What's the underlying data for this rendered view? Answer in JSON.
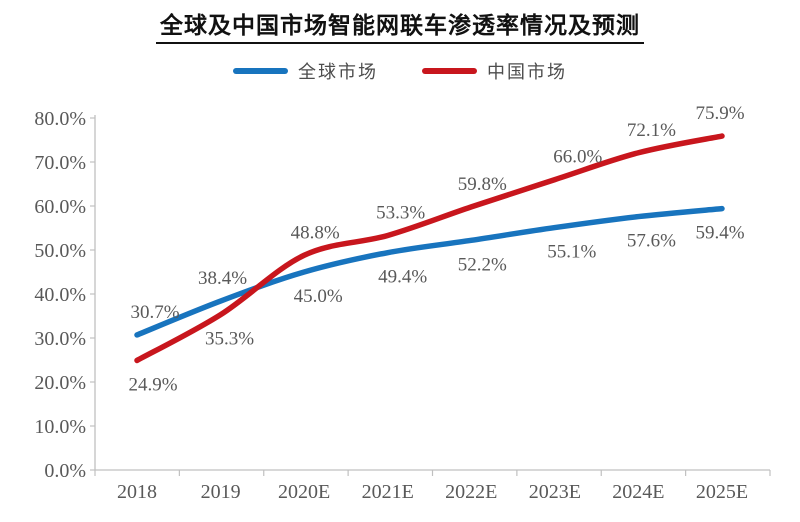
{
  "title": "全球及中国市场智能网联车渗透率情况及预测",
  "legend": [
    {
      "label": "全球市场",
      "color": "#1874BE"
    },
    {
      "label": "中国市场",
      "color": "#C8161D"
    }
  ],
  "colors": {
    "global_series": "#1874BE",
    "china_series": "#C8161D",
    "axis_line": "#C0C0C0",
    "text_gray": "#595959",
    "title_black": "#111111"
  },
  "chart_data": {
    "type": "line",
    "title": "全球及中国市场智能网联车渗透率情况及预测",
    "categories": [
      "2018",
      "2019",
      "2020E",
      "2021E",
      "2022E",
      "2023E",
      "2024E",
      "2025E"
    ],
    "series": [
      {
        "name": "全球市场",
        "color": "#1874BE",
        "values": [
          30.7,
          38.4,
          45.0,
          49.4,
          52.2,
          55.1,
          57.6,
          59.4
        ],
        "data_labels": [
          "30.7%",
          "38.4%",
          "45.0%",
          "49.4%",
          "52.2%",
          "55.1%",
          "57.6%",
          "59.4%"
        ],
        "label_placement": [
          "above",
          "above",
          "below",
          "below",
          "below",
          "below",
          "below",
          "below"
        ],
        "label_dx": [
          18,
          2,
          14,
          15,
          11,
          17,
          13,
          -2
        ]
      },
      {
        "name": "中国市场",
        "color": "#C8161D",
        "values": [
          24.9,
          35.3,
          48.8,
          53.3,
          59.8,
          66.0,
          72.1,
          75.9
        ],
        "data_labels": [
          "24.9%",
          "35.3%",
          "48.8%",
          "53.3%",
          "59.8%",
          "66.0%",
          "72.1%",
          "75.9%"
        ],
        "label_placement": [
          "below",
          "below",
          "above",
          "above",
          "above",
          "above",
          "above",
          "above"
        ],
        "label_dx": [
          16,
          9,
          11,
          13,
          11,
          23,
          13,
          -2
        ]
      }
    ],
    "ylim": [
      0,
      80
    ],
    "ytick_step": 10,
    "ytick_labels": [
      "0.0%",
      "10.0%",
      "20.0%",
      "30.0%",
      "40.0%",
      "50.0%",
      "60.0%",
      "70.0%",
      "80.0%"
    ],
    "grid": false,
    "legend_position": "top",
    "smooth_lines": true
  }
}
